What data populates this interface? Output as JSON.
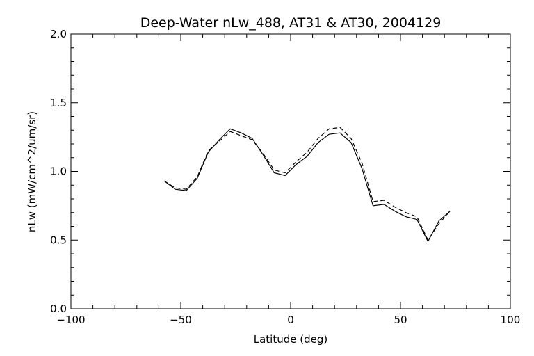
{
  "chart_data": {
    "type": "line",
    "title": "Deep-Water nLw_488, AT31 & AT30, 2004129",
    "xlabel": "Latitude (deg)",
    "ylabel": "nLw (mW/cm^2/um/sr)",
    "xlim": [
      -100,
      100
    ],
    "ylim": [
      0.0,
      2.0
    ],
    "x_ticks": [
      -100,
      -50,
      0,
      50,
      100
    ],
    "x_tick_labels": [
      "−100",
      "−50",
      "0",
      "50",
      "100"
    ],
    "y_ticks": [
      0.0,
      0.5,
      1.0,
      1.5,
      2.0
    ],
    "y_tick_labels": [
      "0.0",
      "0.5",
      "1.0",
      "1.5",
      "2.0"
    ],
    "grid": false,
    "series": [
      {
        "style": "solid",
        "x": [
          -57.5,
          -52.5,
          -47.5,
          -42.5,
          -37.5,
          -32.5,
          -27.5,
          -22.5,
          -17.5,
          -12.5,
          -7.5,
          -2.5,
          2.5,
          7.5,
          12.5,
          17.5,
          22.5,
          27.5,
          32.5,
          37.5,
          42.5,
          47.5,
          52.5,
          57.5,
          62.5,
          67.5,
          72.5
        ],
        "y": [
          0.93,
          0.87,
          0.86,
          0.95,
          1.14,
          1.23,
          1.31,
          1.28,
          1.24,
          1.12,
          0.99,
          0.97,
          1.05,
          1.11,
          1.21,
          1.27,
          1.28,
          1.21,
          1.02,
          0.75,
          0.76,
          0.71,
          0.67,
          0.65,
          0.49,
          0.64,
          0.71
        ]
      },
      {
        "style": "dashed",
        "x": [
          -57.5,
          -52.5,
          -47.5,
          -42.5,
          -37.5,
          -32.5,
          -27.5,
          -22.5,
          -17.5,
          -12.5,
          -7.5,
          -2.5,
          2.5,
          7.5,
          12.5,
          17.5,
          22.5,
          27.5,
          32.5,
          37.5,
          42.5,
          47.5,
          52.5,
          57.5,
          62.5,
          67.5,
          72.5
        ],
        "y": [
          0.93,
          0.88,
          0.87,
          0.96,
          1.15,
          1.22,
          1.29,
          1.26,
          1.23,
          1.13,
          1.01,
          0.99,
          1.07,
          1.14,
          1.24,
          1.31,
          1.32,
          1.24,
          1.06,
          0.78,
          0.79,
          0.74,
          0.7,
          0.67,
          0.5,
          0.62,
          0.71
        ]
      }
    ]
  }
}
